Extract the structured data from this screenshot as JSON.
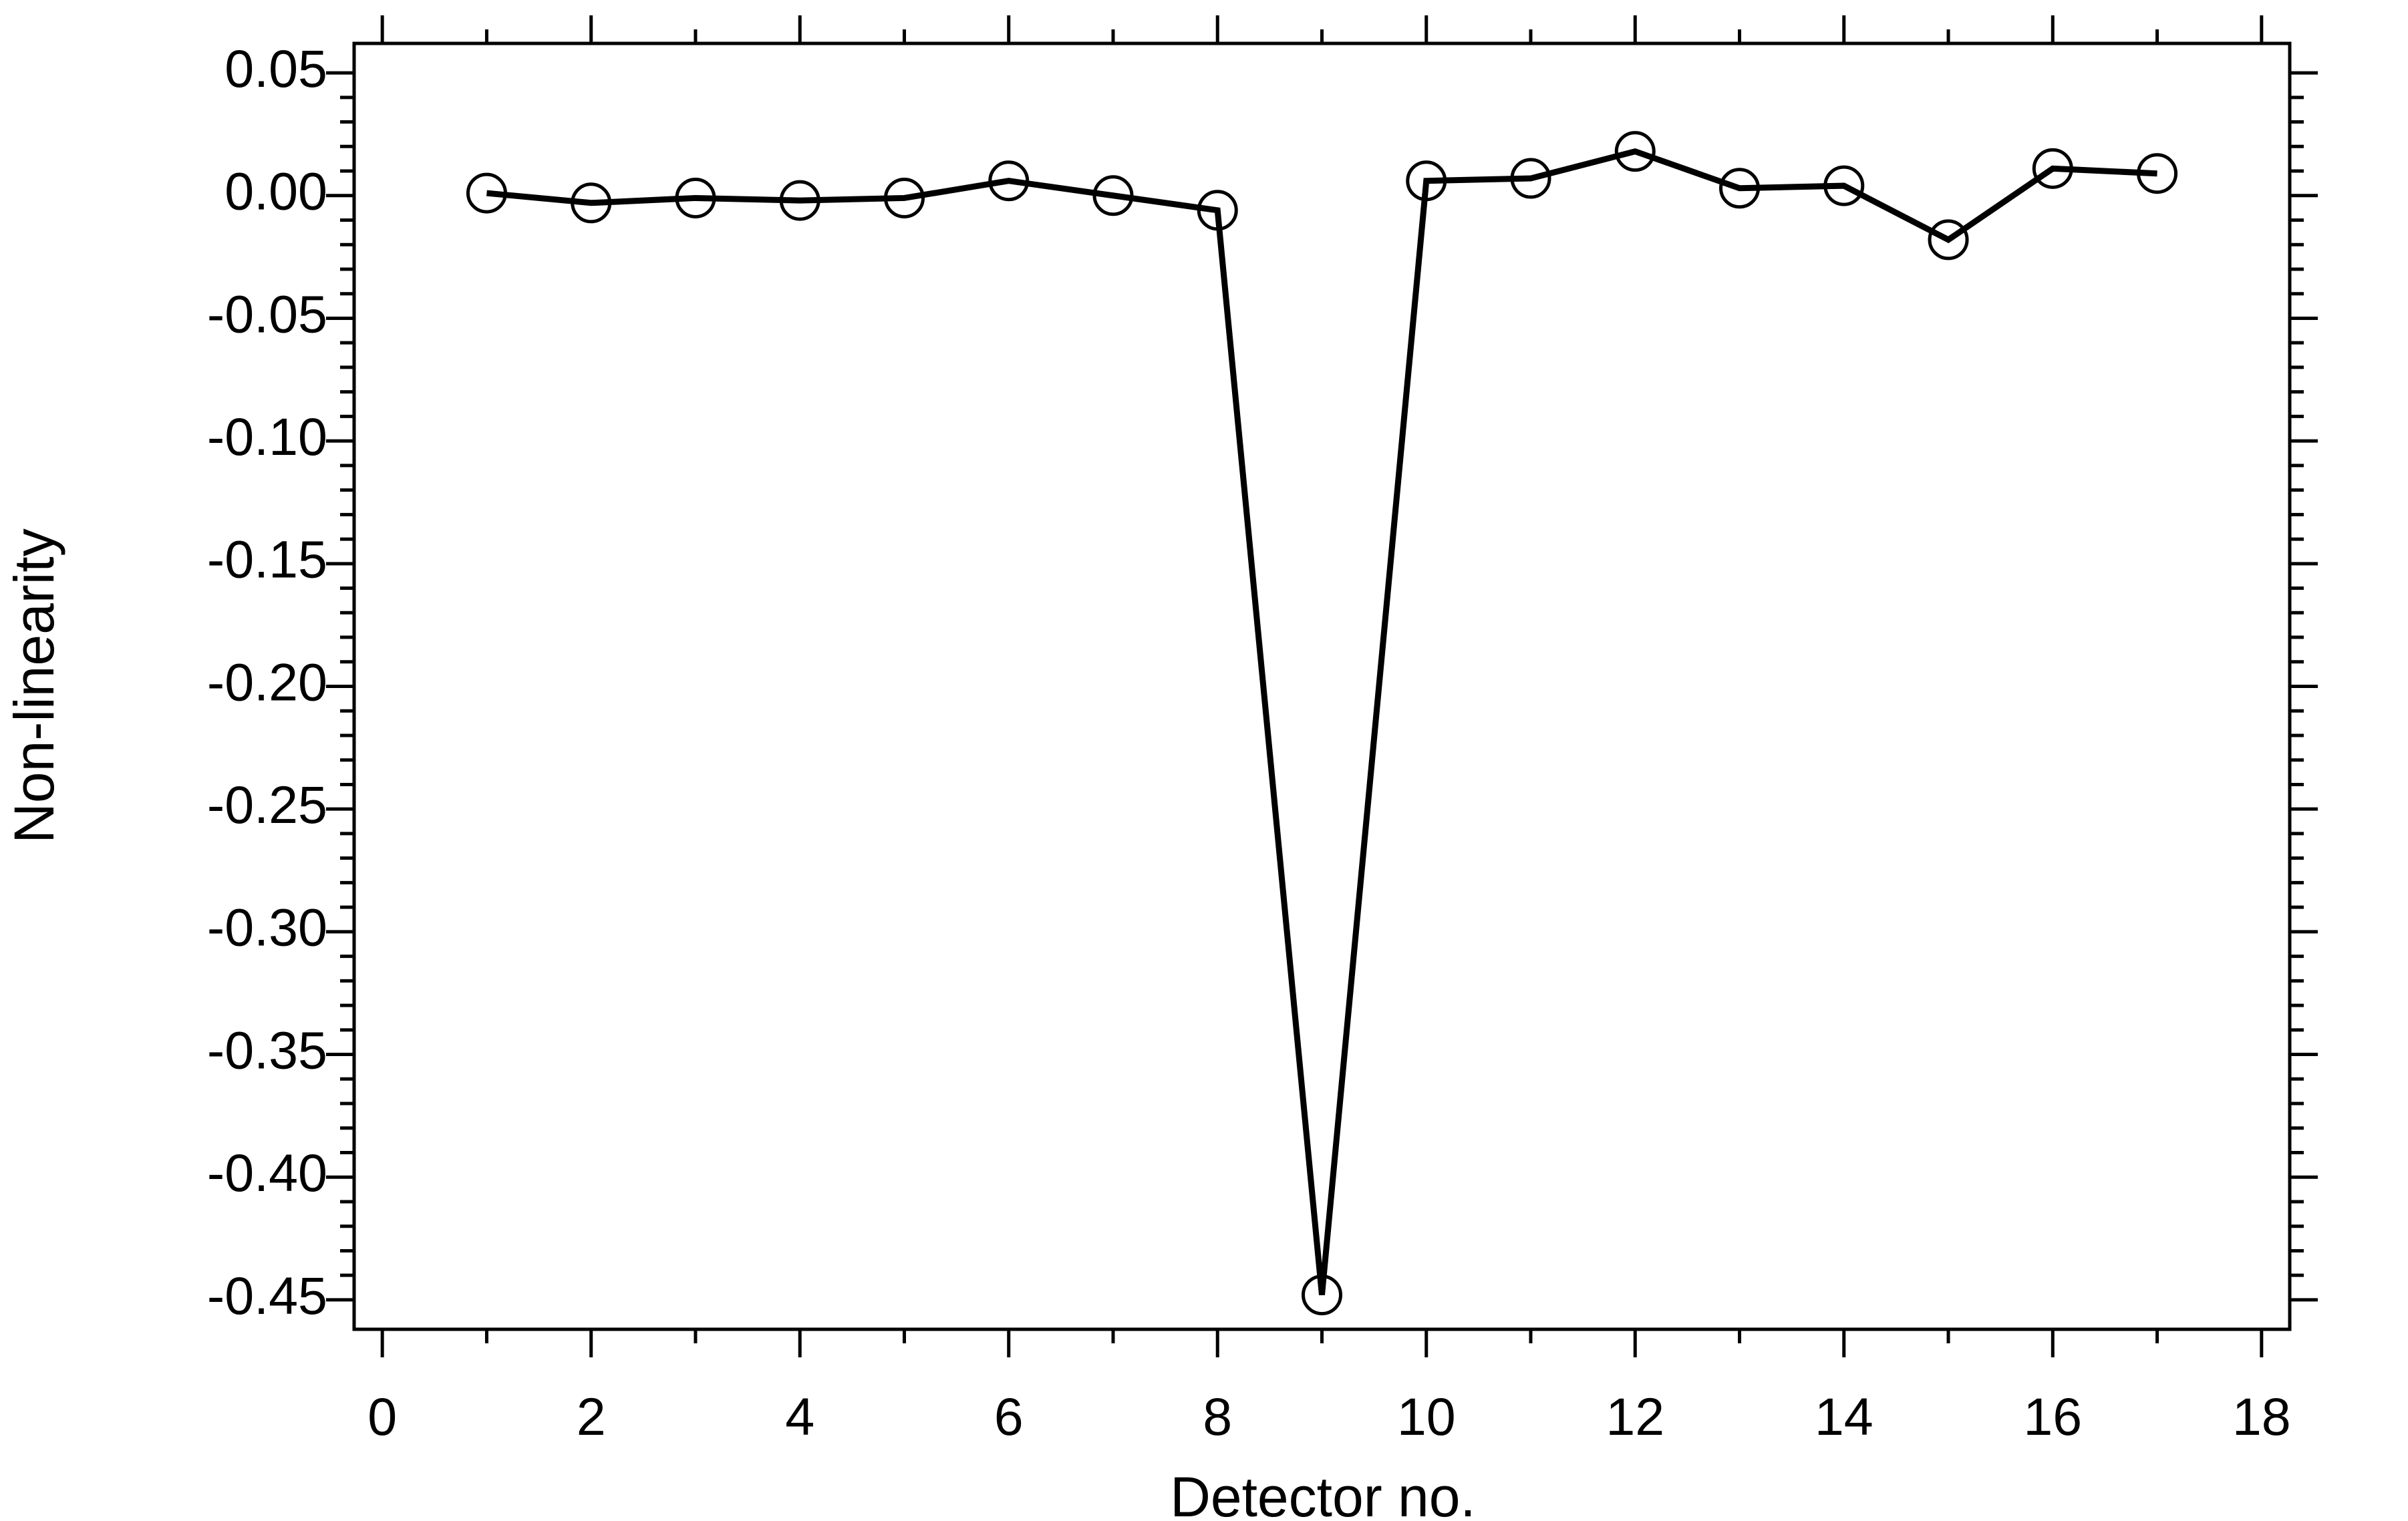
{
  "chart_data": {
    "type": "line",
    "x_label": "Detector no.",
    "y_label": "Non-linearity",
    "x": [
      1,
      2,
      3,
      4,
      5,
      6,
      7,
      8,
      9,
      10,
      11,
      12,
      13,
      14,
      15,
      16,
      17
    ],
    "series": [
      {
        "color": "#000000",
        "marker": "circle",
        "values": [
          0.001,
          -0.003,
          -0.001,
          -0.002,
          -0.001,
          0.006,
          0.0,
          -0.006,
          -0.448,
          0.006,
          0.007,
          0.018,
          0.003,
          0.004,
          -0.018,
          0.011,
          0.009
        ]
      }
    ],
    "xlim": [
      -0.27,
      18.27
    ],
    "ylim": [
      -0.462,
      0.062
    ],
    "xticks": [
      0,
      2,
      4,
      6,
      8,
      10,
      12,
      14,
      16,
      18
    ],
    "yticks": [
      0.05,
      {
        "value": 0,
        "label": "0.00"
      },
      -0.05,
      {
        "value": -0.1,
        "label": "-0.10"
      },
      -0.15,
      {
        "value": -0.2,
        "label": "-0.20"
      },
      -0.25,
      {
        "value": -0.3,
        "label": "-0.30"
      },
      -0.35,
      {
        "value": -0.4,
        "label": "-0.40"
      },
      -0.45
    ],
    "grid": false
  }
}
